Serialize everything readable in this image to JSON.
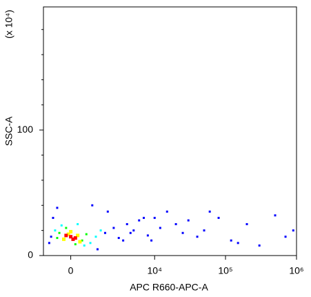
{
  "chart_data": {
    "type": "scatter",
    "x_label": "APC R660-APC-A",
    "y_label": "SSC-A",
    "y_unit": "(x 10⁴)",
    "xscale": "asinh",
    "xlim": [
      -1330,
      1000000
    ],
    "ylim": [
      0,
      198
    ],
    "xticks": [
      0,
      {
        "value": 10000,
        "label": "10⁴"
      },
      {
        "value": 100000,
        "label": "10⁵"
      },
      {
        "value": 1000000,
        "label": "10⁶"
      }
    ],
    "yticks": [
      0,
      100
    ],
    "yminorticks": [
      20,
      40,
      60,
      80,
      120,
      140,
      160,
      180
    ],
    "series": [
      {
        "color": "#0000ff",
        "x": [
          -1000,
          -800,
          -900,
          1800,
          2500,
          3000,
          4000,
          5000,
          6000,
          8000,
          10000,
          12000,
          15000,
          20000,
          2000,
          3500,
          4500,
          7000,
          9000,
          -600,
          1000,
          1300,
          25000,
          30000,
          40000,
          50000,
          80000,
          120000,
          200000,
          300000,
          500000,
          700000,
          900000,
          60000,
          150000
        ],
        "y": [
          10,
          30,
          15,
          18,
          22,
          14,
          25,
          20,
          28,
          16,
          30,
          22,
          35,
          25,
          35,
          12,
          18,
          30,
          12,
          38,
          40,
          5,
          18,
          28,
          15,
          20,
          30,
          12,
          25,
          8,
          32,
          15,
          20,
          35,
          10
        ]
      },
      {
        "color": "#00ffff",
        "x": [
          -700,
          900,
          1200,
          -400,
          300,
          1500,
          600
        ],
        "y": [
          20,
          10,
          15,
          24,
          25,
          20,
          8
        ]
      },
      {
        "color": "#00ff00",
        "x": [
          -500,
          500,
          -200,
          700,
          200,
          -600
        ],
        "y": [
          18,
          12,
          22,
          17,
          9,
          14
        ]
      },
      {
        "color": "#ffff00",
        "x": [
          -300,
          300,
          0,
          400,
          -100
        ],
        "y": [
          13,
          16,
          19,
          11,
          17
        ]
      },
      {
        "color": "#ff0000",
        "x": [
          0,
          200,
          -200,
          100
        ],
        "y": [
          15,
          14,
          16,
          13
        ]
      }
    ]
  }
}
